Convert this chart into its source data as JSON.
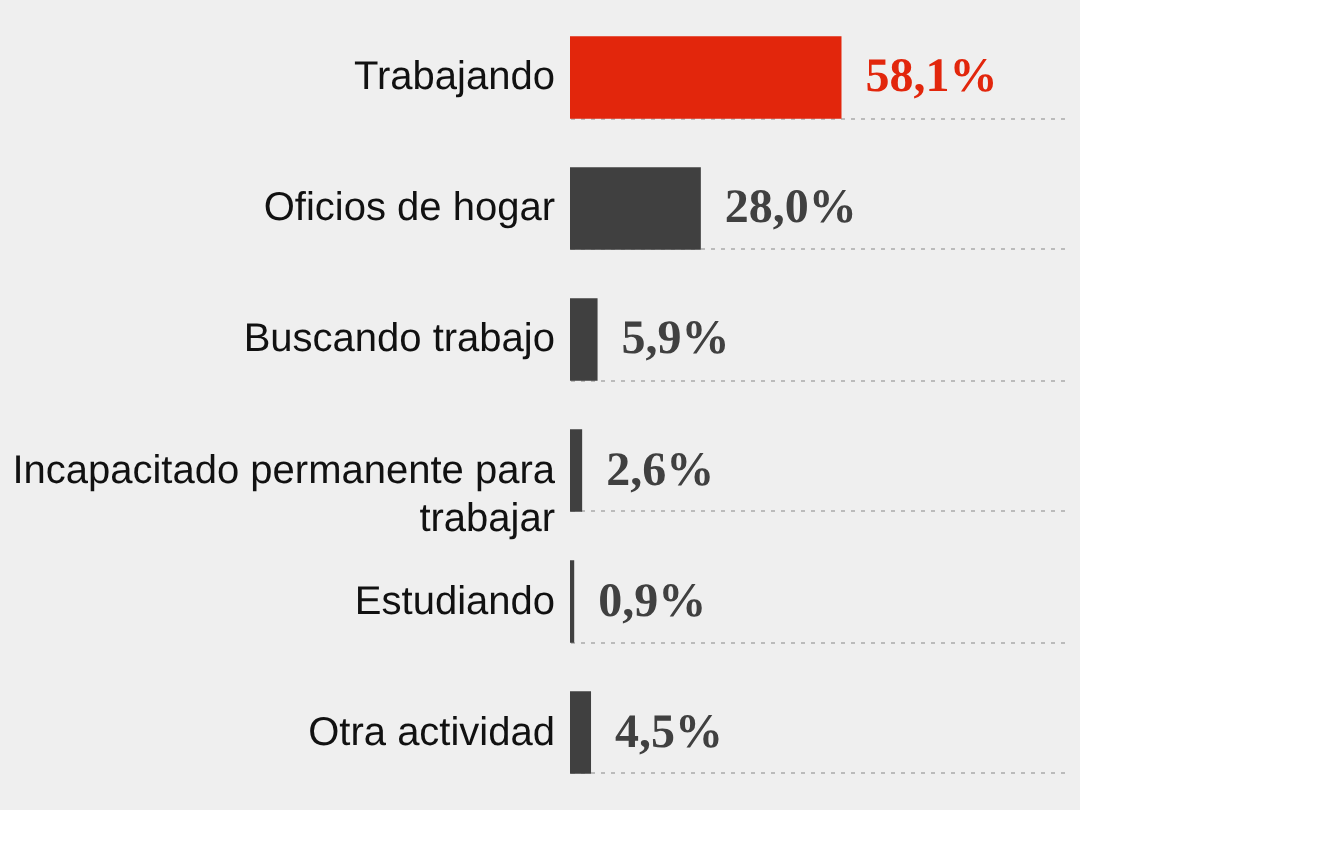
{
  "chart_data": {
    "type": "bar",
    "orientation": "horizontal",
    "categories": [
      "Trabajando",
      "Oficios de hogar",
      "Buscando trabajo",
      "Incapacitado permanente para\ntrabajar",
      "Estudiando",
      "Otra actividad"
    ],
    "values": [
      58.1,
      28.0,
      5.9,
      2.6,
      0.9,
      4.5
    ],
    "value_labels": [
      "58,1%",
      "28,0%",
      "5,9%",
      "2,6%",
      "0,9%",
      "4,5%"
    ],
    "colors": [
      "#e2260c",
      "#404040",
      "#404040",
      "#404040",
      "#404040",
      "#404040"
    ],
    "xlim": [
      0,
      107
    ],
    "grid": "y",
    "tick_labels": "y"
  }
}
